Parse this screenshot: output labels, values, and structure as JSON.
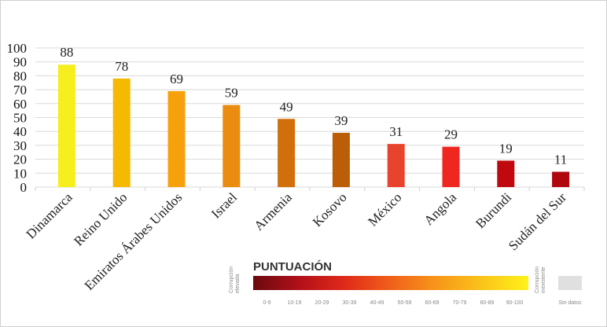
{
  "chart_data": {
    "type": "bar",
    "categories": [
      "Dinamarca",
      "Reino Unido",
      "Emiratos Árabes Unidos",
      "Israel",
      "Armenia",
      "Kosovo",
      "México",
      "Angola",
      "Burundi",
      "Sudán del Sur"
    ],
    "values": [
      88,
      78,
      69,
      59,
      49,
      39,
      31,
      29,
      19,
      11
    ],
    "colors": [
      "#f7ee1d",
      "#f4b900",
      "#f6a10c",
      "#e98c10",
      "#d06f0b",
      "#bc5d08",
      "#e8432c",
      "#f02620",
      "#c0080f",
      "#b0060e"
    ],
    "ylim": [
      0,
      100
    ],
    "yticks": [
      0,
      10,
      20,
      30,
      40,
      50,
      60,
      70,
      80,
      90,
      100
    ],
    "grid": true
  },
  "legend": {
    "title": "PUNTUACIÓN",
    "left_caption": [
      "Corrupción",
      "elevada"
    ],
    "right_caption": [
      "Corrupción",
      "inexistente"
    ],
    "ranges": [
      "0-9",
      "10-19",
      "20-29",
      "30-39",
      "40-49",
      "50-59",
      "60-69",
      "70-79",
      "80-89",
      "90-100"
    ],
    "no_data_label": "Sin datos",
    "gradient_colors": [
      "#6a0a0f",
      "#b2101a",
      "#e02a1a",
      "#f0601a",
      "#f7961a",
      "#fbc41a",
      "#fff21a"
    ],
    "no_data_color": "#e0e0e0"
  }
}
